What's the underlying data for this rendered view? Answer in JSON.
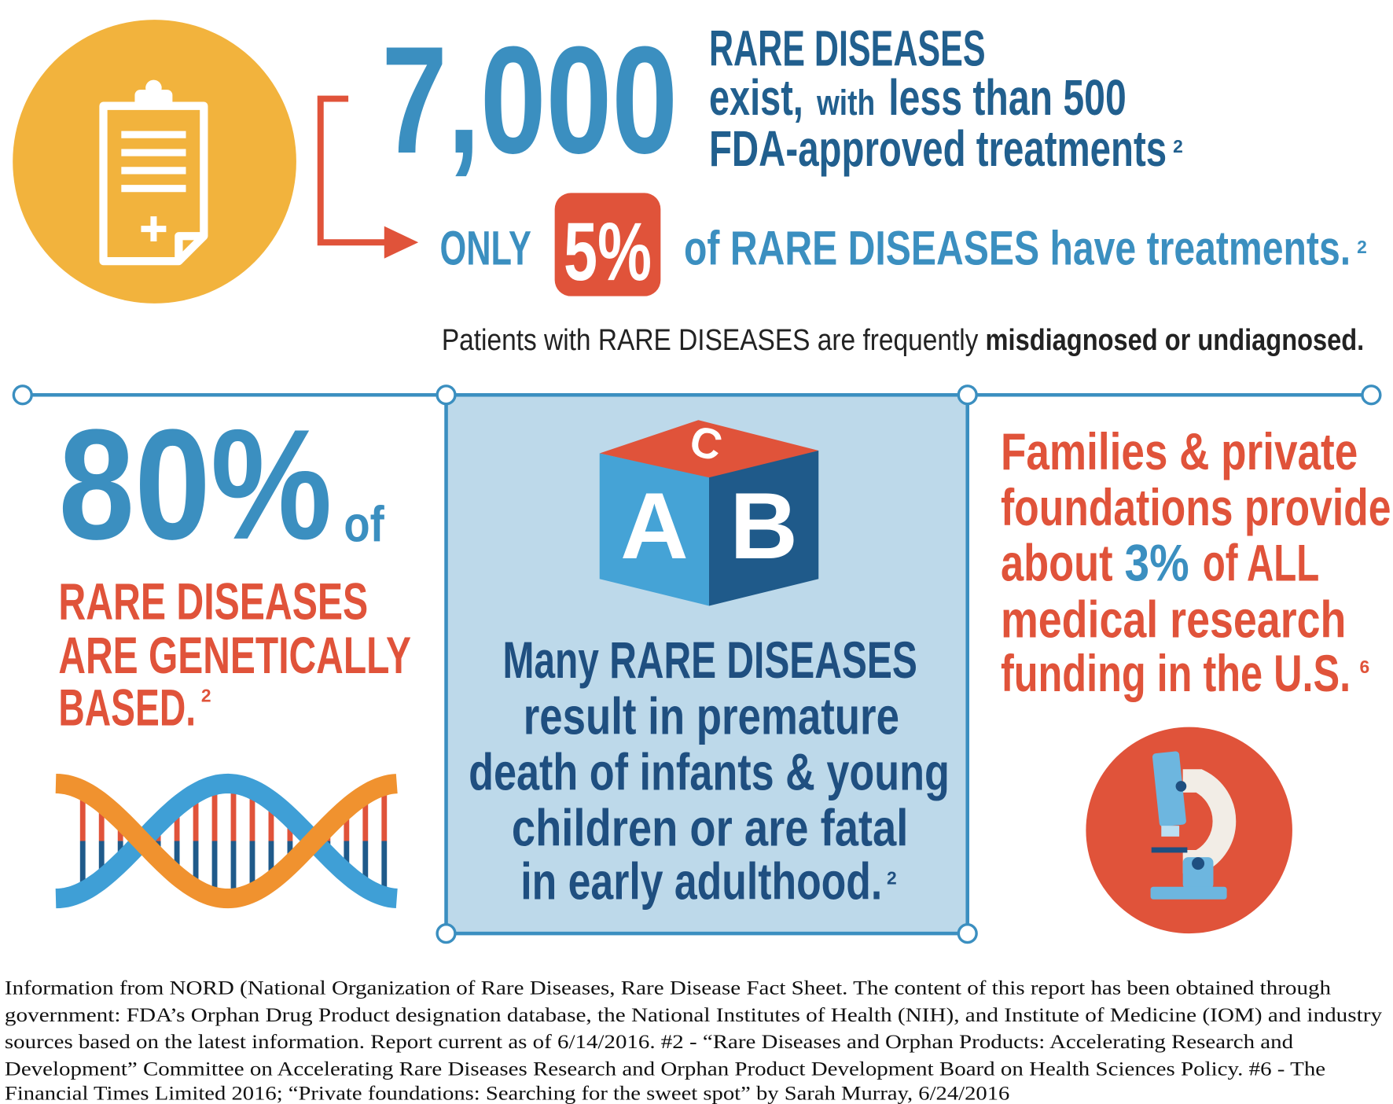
{
  "top_stat": {
    "number": "7,000",
    "line_1": "RARE DISEASES",
    "line_2": {
      "part_1": "exist,",
      "part_2": "with",
      "part_3": "less than 500"
    },
    "line_3": "FDA-approved treatments",
    "note": "2"
  },
  "treatment_stat": {
    "lead": "ONLY",
    "figure": "5%",
    "text": "of RARE DISEASES have treatments.",
    "note": "2"
  },
  "diagnosis_note": {
    "text": "Patients with RARE DISEASES are frequently",
    "emphasis": "misdiagnosed or undiagnosed."
  },
  "genetic_panel": {
    "figure": "80%",
    "figure_suffix": "of",
    "lines": [
      "RARE DISEASES",
      "ARE GENETICALLY",
      "BASED."
    ],
    "note": "2"
  },
  "mortality_panel": {
    "block_letters": [
      "A",
      "B",
      "C"
    ],
    "lines": [
      "Many RARE DISEASES",
      "result in premature",
      "death of infants & young",
      "children or are fatal",
      "in early adulthood."
    ],
    "note": "2"
  },
  "funding_panel": {
    "lines_start": [
      "Families & private",
      "foundations provide"
    ],
    "line_3": {
      "part_1": "about",
      "part_2": "3%",
      "part_3": "of ALL"
    },
    "lines_end": [
      "medical research",
      "funding in the U.S."
    ],
    "note": "6"
  },
  "source_note": {
    "lines": [
      "Information from NORD (National Organization of Rare Diseases, Rare Disease Fact Sheet.  The content of this report has been obtained through",
      "government: FDA’s Orphan Drug Product designation database, the National Institutes of Health (NIH), and Institute of Medicine (IOM) and industry",
      "sources based on the latest information. Report current as of 6/14/2016.  #2 - “Rare Diseases and Orphan Products: Accelerating Research and",
      "Development” Committee on Accelerating Rare Diseases Research and Orphan Product Development Board on Health Sciences Policy.  #6 - The",
      "Financial Times Limited 2016; “Private foundations: Searching for the sweet spot” by Sarah Murray, 6/24/2016"
    ]
  }
}
